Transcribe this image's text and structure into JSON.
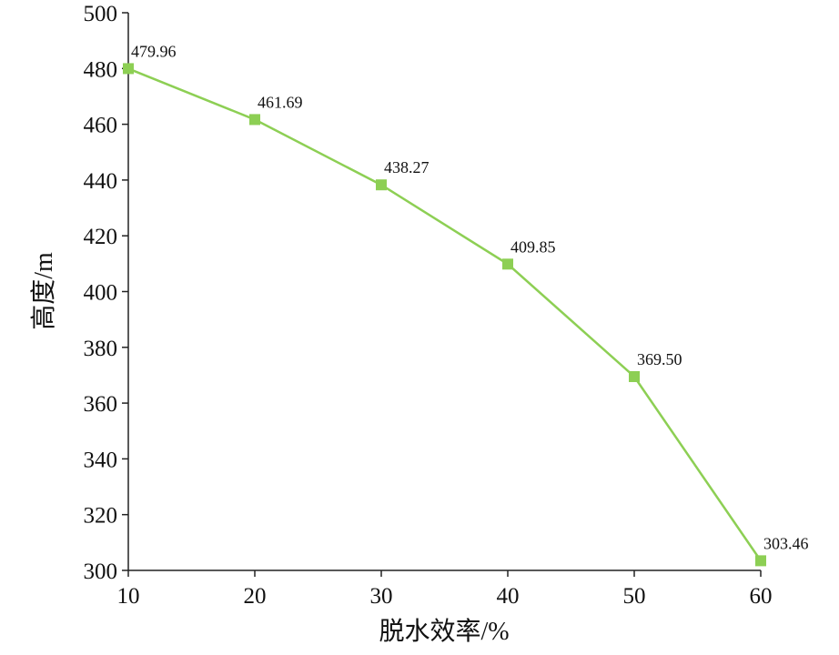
{
  "chart_data": {
    "type": "line",
    "title": "",
    "xlabel": "脱水效率/%",
    "ylabel": "高度/m",
    "x": [
      10,
      20,
      30,
      40,
      50,
      60
    ],
    "series": [
      {
        "values": [
          479.96,
          461.69,
          438.27,
          409.85,
          369.5,
          303.46
        ],
        "labels": [
          "479.96",
          "461.69",
          "438.27",
          "409.85",
          "369.50",
          "303.46"
        ],
        "color": "#8dcf54",
        "marker": "square"
      }
    ],
    "xlim": [
      10,
      60
    ],
    "ylim": [
      300,
      500
    ],
    "x_ticks": [
      10,
      20,
      30,
      40,
      50,
      60
    ],
    "y_ticks": [
      300,
      320,
      340,
      360,
      380,
      400,
      420,
      440,
      460,
      480,
      500
    ],
    "grid": false,
    "legend": "none"
  }
}
